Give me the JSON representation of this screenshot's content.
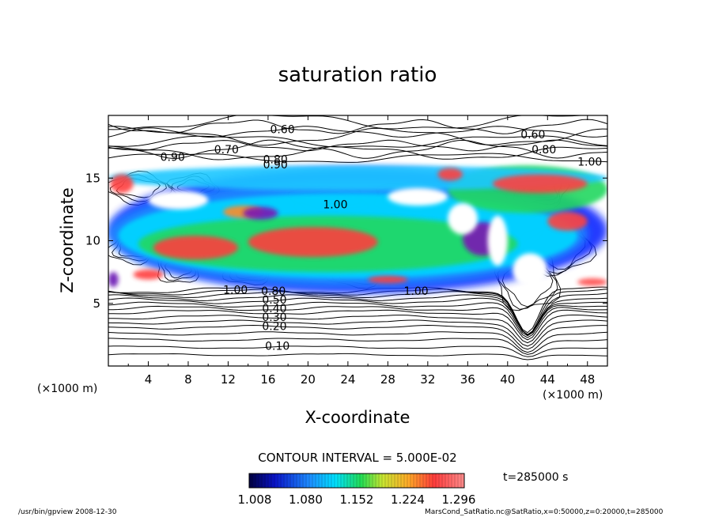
{
  "chart_data": {
    "type": "heatmap",
    "title": "saturation ratio",
    "xlabel": "X-coordinate",
    "ylabel": "Z-coordinate",
    "x_unit": "(×1000 m)",
    "z_unit": "(×1000 m)",
    "xlim": [
      0,
      50
    ],
    "ylim": [
      0,
      20
    ],
    "x_ticks": [
      "4",
      "8",
      "12",
      "16",
      "20",
      "24",
      "28",
      "32",
      "36",
      "40",
      "44",
      "48"
    ],
    "y_ticks": [
      "5",
      "10",
      "15"
    ],
    "contour_interval": "CONTOUR INTERVAL = 5.000E-02",
    "contour_labels": [
      {
        "x": 16.2,
        "y": 18.9,
        "text": "0.60"
      },
      {
        "x": 41.3,
        "y": 18.5,
        "text": "0.60"
      },
      {
        "x": 10.6,
        "y": 17.3,
        "text": "0.70"
      },
      {
        "x": 15.5,
        "y": 16.5,
        "text": "0.80"
      },
      {
        "x": 15.5,
        "y": 16.1,
        "text": "0.90"
      },
      {
        "x": 5.2,
        "y": 16.7,
        "text": "0.90"
      },
      {
        "x": 42.4,
        "y": 17.3,
        "text": "0.80"
      },
      {
        "x": 47.0,
        "y": 16.3,
        "text": "1.00"
      },
      {
        "x": 21.5,
        "y": 12.9,
        "text": "1.00"
      },
      {
        "x": 11.5,
        "y": 6.1,
        "text": "1.00"
      },
      {
        "x": 15.3,
        "y": 6.0,
        "text": "0.80"
      },
      {
        "x": 29.6,
        "y": 6.0,
        "text": "1.00"
      },
      {
        "x": 15.4,
        "y": 5.3,
        "text": "0.50"
      },
      {
        "x": 15.4,
        "y": 4.6,
        "text": "0.40"
      },
      {
        "x": 15.4,
        "y": 3.9,
        "text": "0.30"
      },
      {
        "x": 15.4,
        "y": 3.2,
        "text": "0.20"
      },
      {
        "x": 15.7,
        "y": 1.6,
        "text": "0.10"
      }
    ],
    "colorbar": {
      "ticks": [
        "1.008",
        "1.080",
        "1.152",
        "1.224",
        "1.296"
      ]
    },
    "time_label": "t=285000 s",
    "footer_left": "/usr/bin/gpview   2008-12-30",
    "footer_right": "MarsCond_SatRatio.nc@SatRatio,x=0:50000,z=0:20000,t=285000"
  }
}
